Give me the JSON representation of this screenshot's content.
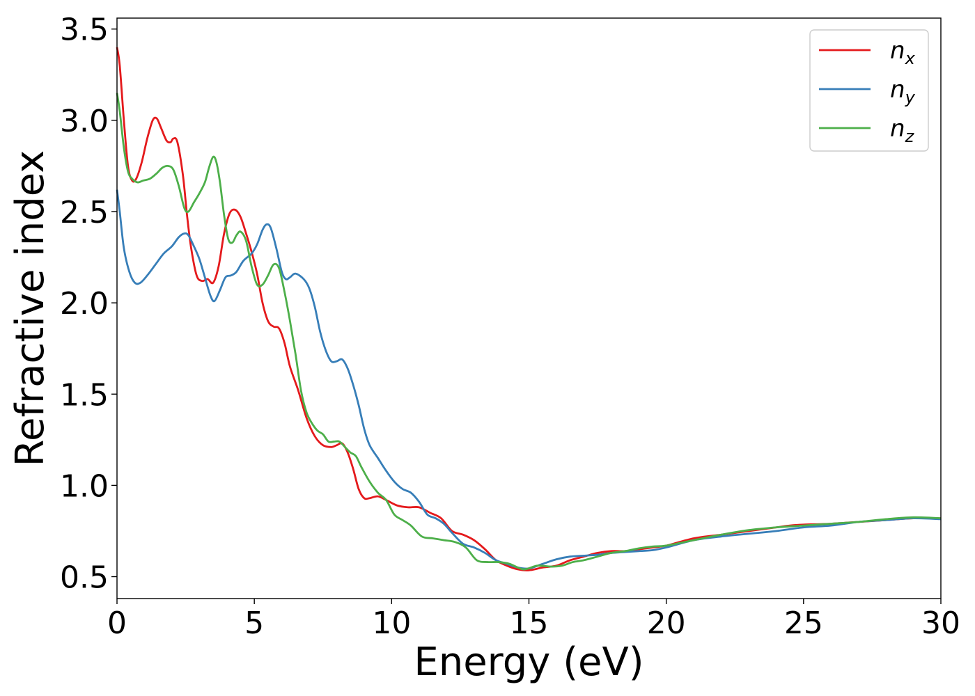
{
  "chart_data": {
    "type": "line",
    "title": "",
    "xlabel": "Energy (eV)",
    "ylabel": "Refractive index",
    "xlim": [
      0,
      30
    ],
    "ylim": [
      0.38,
      3.56
    ],
    "xticks": [
      0,
      5,
      10,
      15,
      20,
      25,
      30
    ],
    "xtick_labels": [
      "0",
      "5",
      "10",
      "15",
      "20",
      "25",
      "30"
    ],
    "yticks": [
      0.5,
      1.0,
      1.5,
      2.0,
      2.5,
      3.0,
      3.5
    ],
    "ytick_labels": [
      "0.5",
      "1.0",
      "1.5",
      "2.0",
      "2.5",
      "3.0",
      "3.5"
    ],
    "grid": false,
    "legend_position": "top-right",
    "series": [
      {
        "name": "n",
        "subscript": "x",
        "color": "#e41a1c",
        "points": [
          [
            0,
            3.4
          ],
          [
            0.1,
            3.3
          ],
          [
            0.25,
            3.0
          ],
          [
            0.4,
            2.75
          ],
          [
            0.55,
            2.67
          ],
          [
            0.7,
            2.68
          ],
          [
            0.9,
            2.77
          ],
          [
            1.1,
            2.9
          ],
          [
            1.3,
            3.0
          ],
          [
            1.45,
            3.01
          ],
          [
            1.6,
            2.96
          ],
          [
            1.8,
            2.89
          ],
          [
            1.95,
            2.88
          ],
          [
            2.05,
            2.9
          ],
          [
            2.2,
            2.88
          ],
          [
            2.4,
            2.7
          ],
          [
            2.55,
            2.48
          ],
          [
            2.7,
            2.3
          ],
          [
            2.9,
            2.15
          ],
          [
            3.1,
            2.12
          ],
          [
            3.3,
            2.13
          ],
          [
            3.5,
            2.11
          ],
          [
            3.7,
            2.2
          ],
          [
            3.9,
            2.38
          ],
          [
            4.1,
            2.49
          ],
          [
            4.3,
            2.51
          ],
          [
            4.5,
            2.47
          ],
          [
            4.7,
            2.38
          ],
          [
            4.9,
            2.28
          ],
          [
            5.1,
            2.16
          ],
          [
            5.3,
            2.0
          ],
          [
            5.5,
            1.9
          ],
          [
            5.7,
            1.87
          ],
          [
            5.9,
            1.86
          ],
          [
            6.1,
            1.78
          ],
          [
            6.3,
            1.65
          ],
          [
            6.6,
            1.52
          ],
          [
            6.9,
            1.37
          ],
          [
            7.2,
            1.27
          ],
          [
            7.5,
            1.22
          ],
          [
            7.8,
            1.21
          ],
          [
            8.0,
            1.22
          ],
          [
            8.2,
            1.23
          ],
          [
            8.4,
            1.18
          ],
          [
            8.6,
            1.09
          ],
          [
            8.8,
            0.98
          ],
          [
            9.0,
            0.93
          ],
          [
            9.2,
            0.93
          ],
          [
            9.5,
            0.94
          ],
          [
            9.8,
            0.92
          ],
          [
            10.2,
            0.89
          ],
          [
            10.6,
            0.88
          ],
          [
            11.0,
            0.88
          ],
          [
            11.4,
            0.85
          ],
          [
            11.8,
            0.82
          ],
          [
            12.2,
            0.75
          ],
          [
            12.6,
            0.73
          ],
          [
            13.0,
            0.7
          ],
          [
            13.4,
            0.65
          ],
          [
            13.8,
            0.59
          ],
          [
            14.2,
            0.56
          ],
          [
            14.6,
            0.54
          ],
          [
            15.0,
            0.535
          ],
          [
            15.5,
            0.55
          ],
          [
            16.0,
            0.56
          ],
          [
            16.5,
            0.59
          ],
          [
            17.0,
            0.61
          ],
          [
            17.5,
            0.63
          ],
          [
            18.0,
            0.64
          ],
          [
            18.5,
            0.64
          ],
          [
            19.0,
            0.65
          ],
          [
            19.5,
            0.66
          ],
          [
            20.0,
            0.67
          ],
          [
            21.0,
            0.71
          ],
          [
            22.0,
            0.73
          ],
          [
            23.0,
            0.75
          ],
          [
            24.0,
            0.77
          ],
          [
            24.5,
            0.78
          ],
          [
            25.0,
            0.785
          ],
          [
            26.0,
            0.79
          ],
          [
            27.0,
            0.8
          ],
          [
            28.0,
            0.81
          ],
          [
            29.0,
            0.82
          ],
          [
            30.0,
            0.82
          ]
        ]
      },
      {
        "name": "n",
        "subscript": "y",
        "color": "#377eb8",
        "points": [
          [
            0,
            2.62
          ],
          [
            0.1,
            2.5
          ],
          [
            0.25,
            2.3
          ],
          [
            0.45,
            2.17
          ],
          [
            0.65,
            2.11
          ],
          [
            0.85,
            2.11
          ],
          [
            1.1,
            2.15
          ],
          [
            1.4,
            2.21
          ],
          [
            1.7,
            2.27
          ],
          [
            2.0,
            2.31
          ],
          [
            2.25,
            2.36
          ],
          [
            2.45,
            2.38
          ],
          [
            2.6,
            2.37
          ],
          [
            2.8,
            2.31
          ],
          [
            3.0,
            2.24
          ],
          [
            3.2,
            2.14
          ],
          [
            3.4,
            2.04
          ],
          [
            3.55,
            2.01
          ],
          [
            3.75,
            2.07
          ],
          [
            3.95,
            2.14
          ],
          [
            4.15,
            2.15
          ],
          [
            4.35,
            2.17
          ],
          [
            4.6,
            2.23
          ],
          [
            4.9,
            2.27
          ],
          [
            5.1,
            2.32
          ],
          [
            5.3,
            2.4
          ],
          [
            5.45,
            2.43
          ],
          [
            5.6,
            2.41
          ],
          [
            5.8,
            2.3
          ],
          [
            6.0,
            2.17
          ],
          [
            6.15,
            2.13
          ],
          [
            6.3,
            2.14
          ],
          [
            6.5,
            2.16
          ],
          [
            6.8,
            2.13
          ],
          [
            7.0,
            2.08
          ],
          [
            7.2,
            1.98
          ],
          [
            7.4,
            1.84
          ],
          [
            7.6,
            1.74
          ],
          [
            7.8,
            1.68
          ],
          [
            8.0,
            1.68
          ],
          [
            8.2,
            1.69
          ],
          [
            8.4,
            1.64
          ],
          [
            8.6,
            1.55
          ],
          [
            8.8,
            1.44
          ],
          [
            9.0,
            1.31
          ],
          [
            9.2,
            1.22
          ],
          [
            9.5,
            1.15
          ],
          [
            9.8,
            1.08
          ],
          [
            10.1,
            1.02
          ],
          [
            10.4,
            0.98
          ],
          [
            10.7,
            0.96
          ],
          [
            11.0,
            0.91
          ],
          [
            11.3,
            0.84
          ],
          [
            11.6,
            0.82
          ],
          [
            11.9,
            0.79
          ],
          [
            12.2,
            0.74
          ],
          [
            12.6,
            0.68
          ],
          [
            13.0,
            0.66
          ],
          [
            13.4,
            0.63
          ],
          [
            13.8,
            0.59
          ],
          [
            14.2,
            0.57
          ],
          [
            14.6,
            0.55
          ],
          [
            15.0,
            0.545
          ],
          [
            15.5,
            0.57
          ],
          [
            16.0,
            0.595
          ],
          [
            16.5,
            0.61
          ],
          [
            17.0,
            0.615
          ],
          [
            17.5,
            0.62
          ],
          [
            18.0,
            0.63
          ],
          [
            18.5,
            0.635
          ],
          [
            19.0,
            0.64
          ],
          [
            19.5,
            0.645
          ],
          [
            20.0,
            0.66
          ],
          [
            21.0,
            0.7
          ],
          [
            22.0,
            0.72
          ],
          [
            23.0,
            0.735
          ],
          [
            24.0,
            0.75
          ],
          [
            25.0,
            0.77
          ],
          [
            26.0,
            0.78
          ],
          [
            27.0,
            0.8
          ],
          [
            28.0,
            0.81
          ],
          [
            29.0,
            0.82
          ],
          [
            30.0,
            0.815
          ]
        ]
      },
      {
        "name": "n",
        "subscript": "z",
        "color": "#4daf4a",
        "points": [
          [
            0,
            3.15
          ],
          [
            0.1,
            3.05
          ],
          [
            0.25,
            2.85
          ],
          [
            0.4,
            2.72
          ],
          [
            0.55,
            2.68
          ],
          [
            0.75,
            2.66
          ],
          [
            0.95,
            2.67
          ],
          [
            1.2,
            2.68
          ],
          [
            1.45,
            2.71
          ],
          [
            1.65,
            2.74
          ],
          [
            1.85,
            2.75
          ],
          [
            2.05,
            2.73
          ],
          [
            2.25,
            2.64
          ],
          [
            2.45,
            2.52
          ],
          [
            2.6,
            2.5
          ],
          [
            2.8,
            2.55
          ],
          [
            3.0,
            2.6
          ],
          [
            3.2,
            2.66
          ],
          [
            3.35,
            2.74
          ],
          [
            3.5,
            2.8
          ],
          [
            3.62,
            2.77
          ],
          [
            3.75,
            2.66
          ],
          [
            3.9,
            2.48
          ],
          [
            4.05,
            2.35
          ],
          [
            4.2,
            2.33
          ],
          [
            4.35,
            2.37
          ],
          [
            4.5,
            2.39
          ],
          [
            4.7,
            2.34
          ],
          [
            4.9,
            2.2
          ],
          [
            5.1,
            2.1
          ],
          [
            5.3,
            2.1
          ],
          [
            5.5,
            2.15
          ],
          [
            5.7,
            2.21
          ],
          [
            5.9,
            2.19
          ],
          [
            6.1,
            2.06
          ],
          [
            6.3,
            1.9
          ],
          [
            6.5,
            1.72
          ],
          [
            6.7,
            1.52
          ],
          [
            6.9,
            1.4
          ],
          [
            7.1,
            1.34
          ],
          [
            7.3,
            1.3
          ],
          [
            7.5,
            1.28
          ],
          [
            7.7,
            1.24
          ],
          [
            7.9,
            1.24
          ],
          [
            8.1,
            1.24
          ],
          [
            8.3,
            1.21
          ],
          [
            8.5,
            1.18
          ],
          [
            8.7,
            1.16
          ],
          [
            8.9,
            1.1
          ],
          [
            9.2,
            1.02
          ],
          [
            9.5,
            0.96
          ],
          [
            9.8,
            0.92
          ],
          [
            10.1,
            0.84
          ],
          [
            10.4,
            0.81
          ],
          [
            10.7,
            0.78
          ],
          [
            11.1,
            0.72
          ],
          [
            11.5,
            0.71
          ],
          [
            11.9,
            0.7
          ],
          [
            12.3,
            0.69
          ],
          [
            12.7,
            0.66
          ],
          [
            13.1,
            0.59
          ],
          [
            13.5,
            0.58
          ],
          [
            13.9,
            0.58
          ],
          [
            14.3,
            0.57
          ],
          [
            14.8,
            0.54
          ],
          [
            15.3,
            0.56
          ],
          [
            15.8,
            0.555
          ],
          [
            16.2,
            0.56
          ],
          [
            16.6,
            0.58
          ],
          [
            17.0,
            0.59
          ],
          [
            17.5,
            0.61
          ],
          [
            18.0,
            0.63
          ],
          [
            18.5,
            0.64
          ],
          [
            19.0,
            0.655
          ],
          [
            19.5,
            0.665
          ],
          [
            20.0,
            0.67
          ],
          [
            21.0,
            0.7
          ],
          [
            22.0,
            0.73
          ],
          [
            23.0,
            0.755
          ],
          [
            24.0,
            0.77
          ],
          [
            25.0,
            0.78
          ],
          [
            26.0,
            0.79
          ],
          [
            27.0,
            0.8
          ],
          [
            28.0,
            0.815
          ],
          [
            29.0,
            0.825
          ],
          [
            30.0,
            0.82
          ]
        ]
      }
    ]
  }
}
